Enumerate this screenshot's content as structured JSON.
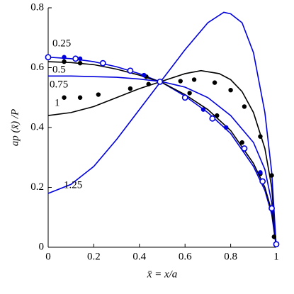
{
  "chart_data": {
    "type": "line",
    "xlabel": "x̄ = x/a",
    "ylabel": "ap (x̄) /P",
    "xlim": [
      0,
      1
    ],
    "ylim": [
      0,
      0.8
    ],
    "xticks": [
      0,
      0.2,
      0.4,
      0.6,
      0.8,
      1
    ],
    "yticks": [
      0,
      0.2,
      0.4,
      0.6,
      0.8
    ],
    "series": [
      {
        "name": "0.25",
        "color": "#0000dd",
        "style": "line",
        "x": [
          0,
          0.1,
          0.2,
          0.3,
          0.4,
          0.5,
          0.6,
          0.7,
          0.8,
          0.9,
          0.95,
          0.98,
          1
        ],
        "values": [
          0.635,
          0.63,
          0.62,
          0.603,
          0.58,
          0.55,
          0.505,
          0.45,
          0.38,
          0.27,
          0.19,
          0.11,
          0
        ]
      },
      {
        "name": "0.5",
        "color": "#000000",
        "style": "line",
        "x": [
          0,
          0.1,
          0.2,
          0.3,
          0.4,
          0.5,
          0.6,
          0.7,
          0.8,
          0.9,
          0.95,
          0.98,
          1
        ],
        "values": [
          0.62,
          0.617,
          0.61,
          0.595,
          0.575,
          0.55,
          0.51,
          0.46,
          0.39,
          0.28,
          0.2,
          0.12,
          0
        ]
      },
      {
        "name": "0.75",
        "color": "#0000dd",
        "style": "line",
        "x": [
          0,
          0.1,
          0.2,
          0.3,
          0.4,
          0.5,
          0.6,
          0.7,
          0.8,
          0.9,
          0.95,
          0.98,
          1
        ],
        "values": [
          0.572,
          0.572,
          0.57,
          0.568,
          0.562,
          0.553,
          0.535,
          0.5,
          0.44,
          0.35,
          0.26,
          0.15,
          0
        ]
      },
      {
        "name": "1",
        "color": "#000000",
        "style": "line",
        "x": [
          0,
          0.1,
          0.2,
          0.3,
          0.4,
          0.5,
          0.6,
          0.67,
          0.75,
          0.8,
          0.85,
          0.9,
          0.95,
          0.98,
          1
        ],
        "values": [
          0.44,
          0.45,
          0.47,
          0.5,
          0.53,
          0.555,
          0.58,
          0.59,
          0.58,
          0.56,
          0.52,
          0.45,
          0.33,
          0.2,
          0
        ]
      },
      {
        "name": "1.25",
        "color": "#0000dd",
        "style": "line",
        "x": [
          0,
          0.1,
          0.2,
          0.3,
          0.4,
          0.5,
          0.6,
          0.7,
          0.77,
          0.8,
          0.85,
          0.9,
          0.95,
          0.98,
          1
        ],
        "values": [
          0.18,
          0.21,
          0.27,
          0.36,
          0.46,
          0.56,
          0.66,
          0.75,
          0.785,
          0.78,
          0.75,
          0.65,
          0.45,
          0.25,
          0
        ]
      },
      {
        "color": "#000000",
        "style": "dot",
        "x": [
          0.07,
          0.14,
          0.22,
          0.36,
          0.44,
          0.58,
          0.64,
          0.73,
          0.8,
          0.86,
          0.93,
          0.98
        ],
        "values": [
          0.5,
          0.5,
          0.51,
          0.53,
          0.545,
          0.555,
          0.56,
          0.55,
          0.525,
          0.47,
          0.37,
          0.24
        ]
      },
      {
        "color": "#000000",
        "style": "dot",
        "x": [
          0.07,
          0.14,
          0.43,
          0.62,
          0.74,
          0.85,
          0.93,
          0.99
        ],
        "values": [
          0.62,
          0.615,
          0.57,
          0.515,
          0.44,
          0.35,
          0.245,
          0.035
        ]
      },
      {
        "color": "#0000dd",
        "style": "dot",
        "x": [
          0.07,
          0.14,
          0.42,
          0.68,
          0.78,
          0.93
        ],
        "values": [
          0.635,
          0.63,
          0.575,
          0.46,
          0.4,
          0.25
        ]
      },
      {
        "color": "#0000dd",
        "style": "open",
        "x": [
          0,
          0.12,
          0.24,
          0.36,
          0.49,
          0.6,
          0.72,
          0.86,
          0.94,
          0.98,
          1
        ],
        "values": [
          0.635,
          0.63,
          0.615,
          0.59,
          0.553,
          0.5,
          0.43,
          0.33,
          0.22,
          0.13,
          0.01
        ]
      }
    ]
  }
}
